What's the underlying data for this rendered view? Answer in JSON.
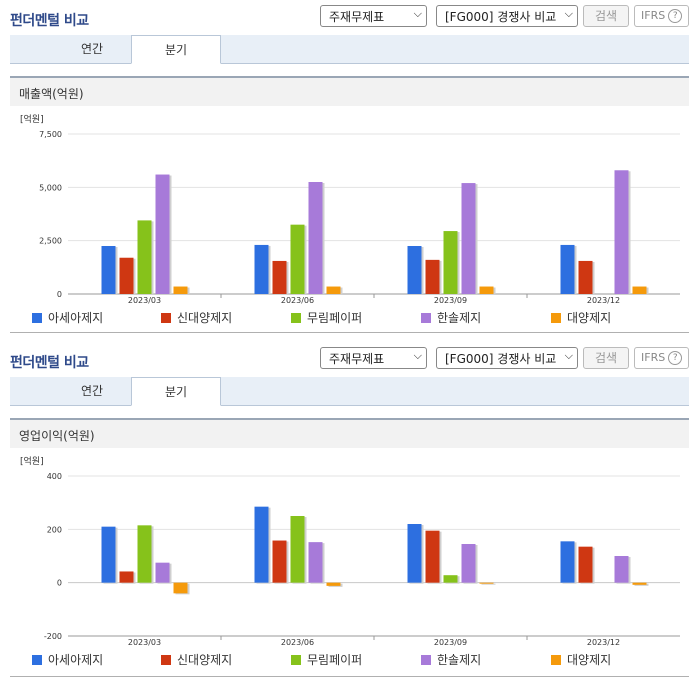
{
  "panels": [
    {
      "title": "펀더멘털 비교",
      "statement_select": "주재무제표",
      "compare_select": "[FG000] 경쟁사 비교",
      "search_label": "검색",
      "ifrs_label": "IFRS",
      "tabs": [
        "연간",
        "분기"
      ],
      "active_tab": "분기",
      "section_title": "매출액(억원)"
    },
    {
      "title": "펀더멘털 비교",
      "statement_select": "주재무제표",
      "compare_select": "[FG000] 경쟁사 비교",
      "search_label": "검색",
      "ifrs_label": "IFRS",
      "tabs": [
        "연간",
        "분기"
      ],
      "active_tab": "분기",
      "section_title": "영업이익(억원)"
    }
  ],
  "legend": [
    "아세아제지",
    "신대양제지",
    "무림페이퍼",
    "한솔제지",
    "대양제지"
  ],
  "colors": [
    "#2d6fe0",
    "#cf3712",
    "#86c21b",
    "#a77ad9",
    "#f59a0b"
  ],
  "chart_data": [
    {
      "type": "bar",
      "unit_label": "[억원]",
      "categories": [
        "2023/03",
        "2023/06",
        "2023/09",
        "2023/12"
      ],
      "ylim": [
        0,
        7500
      ],
      "yticks": [
        "0",
        "2,500",
        "5,000",
        "7,500"
      ],
      "ytick_values": [
        0,
        2500,
        5000,
        7500
      ],
      "series": [
        {
          "name": "아세아제지",
          "values": [
            2250,
            2300,
            2250,
            2300
          ]
        },
        {
          "name": "신대양제지",
          "values": [
            1700,
            1550,
            1600,
            1550
          ]
        },
        {
          "name": "무림페이퍼",
          "values": [
            3450,
            3250,
            2950,
            null
          ]
        },
        {
          "name": "한솔제지",
          "values": [
            5600,
            5250,
            5200,
            5800
          ]
        },
        {
          "name": "대양제지",
          "values": [
            350,
            350,
            350,
            350
          ]
        }
      ]
    },
    {
      "type": "bar",
      "unit_label": "[억원]",
      "categories": [
        "2023/03",
        "2023/06",
        "2023/09",
        "2023/12"
      ],
      "ylim": [
        -200,
        400
      ],
      "yticks": [
        "-200",
        "0",
        "200",
        "400"
      ],
      "ytick_values": [
        -200,
        0,
        200,
        400
      ],
      "series": [
        {
          "name": "아세아제지",
          "values": [
            210,
            285,
            220,
            155
          ]
        },
        {
          "name": "신대양제지",
          "values": [
            42,
            158,
            195,
            135
          ]
        },
        {
          "name": "무림페이퍼",
          "values": [
            215,
            250,
            28,
            null
          ]
        },
        {
          "name": "한솔제지",
          "values": [
            75,
            152,
            145,
            100
          ]
        },
        {
          "name": "대양제지",
          "values": [
            -40,
            -12,
            0,
            -8
          ]
        }
      ]
    }
  ]
}
